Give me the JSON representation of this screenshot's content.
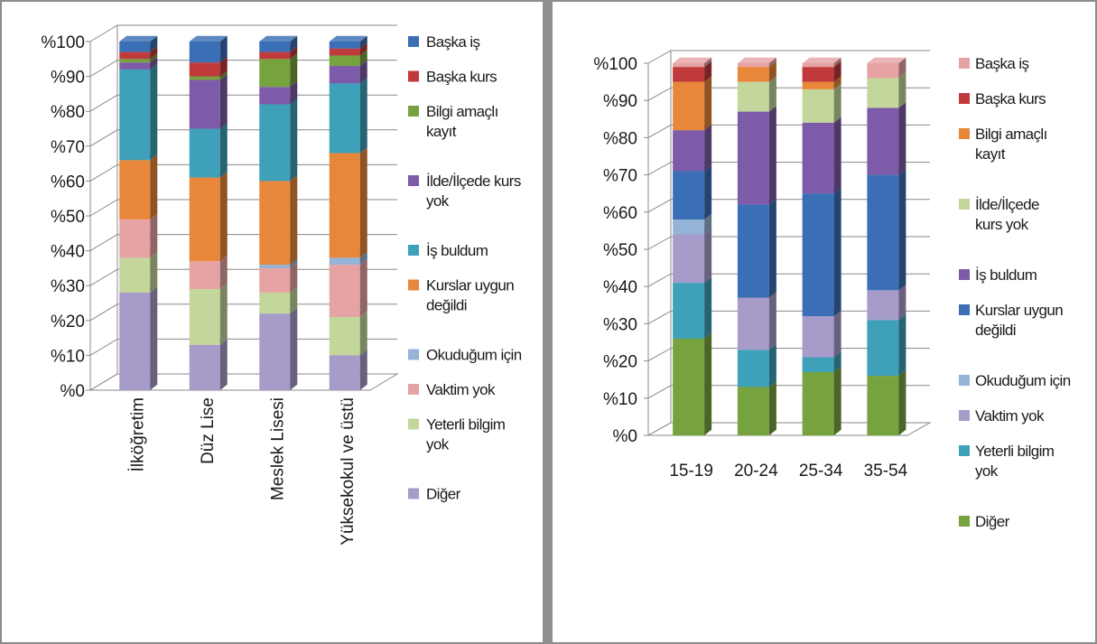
{
  "chart_data": [
    {
      "type": "bar",
      "stacked": "percent",
      "style": "3d-column",
      "categories": [
        "İlköğretim",
        "Düz Lise",
        "Meslek Lisesi",
        "Yüksekokul ve üstü"
      ],
      "yticks": [
        "%0",
        "%10",
        "%20",
        "%30",
        "%40",
        "%50",
        "%60",
        "%70",
        "%80",
        "%90",
        "%100"
      ],
      "ylim": [
        0,
        100
      ],
      "legend_position": "right",
      "series": [
        {
          "name": "Diğer",
          "color": "#a79bc9",
          "values": [
            28,
            13,
            22,
            10
          ]
        },
        {
          "name": "Yeterli bilgim yok",
          "color": "#c3d69b",
          "values": [
            10,
            16,
            6,
            11
          ]
        },
        {
          "name": "Vaktim yok",
          "color": "#e6a3a3",
          "values": [
            11,
            8,
            7,
            15
          ]
        },
        {
          "name": "Okuduğum için",
          "color": "#95b3d7",
          "values": [
            0,
            0,
            1,
            2
          ]
        },
        {
          "name": "Kurslar uygun değildi",
          "color": "#e8873a",
          "values": [
            17,
            24,
            24,
            30
          ]
        },
        {
          "name": "İş buldum",
          "color": "#3ea0b9",
          "values": [
            26,
            14,
            22,
            20
          ]
        },
        {
          "name": "İlde/İlçede kurs yok",
          "color": "#7e5ba8",
          "values": [
            2,
            14,
            5,
            5
          ]
        },
        {
          "name": "Bilgi amaçlı kayıt",
          "color": "#77a33f",
          "values": [
            1,
            1,
            8,
            3
          ]
        },
        {
          "name": "Başka kurs",
          "color": "#c0393b",
          "values": [
            2,
            4,
            2,
            2
          ]
        },
        {
          "name": "Başka iş",
          "color": "#3b6fb5",
          "values": [
            3,
            6,
            3,
            2
          ]
        }
      ],
      "legend": [
        {
          "label": "Başka iş",
          "color": "#3b6fb5"
        },
        {
          "label": "Başka kurs",
          "color": "#c0393b"
        },
        {
          "label": "Bilgi amaçlı kayıt",
          "color": "#77a33f"
        },
        {
          "label": "İlde/İlçede kurs yok",
          "color": "#7e5ba8"
        },
        {
          "label": "İş buldum",
          "color": "#3ea0b9"
        },
        {
          "label": "Kurslar uygun değildi",
          "color": "#e8873a"
        },
        {
          "label": "Okuduğum için",
          "color": "#95b3d7"
        },
        {
          "label": "Vaktim yok",
          "color": "#e6a3a3"
        },
        {
          "label": "Yeterli bilgim yok",
          "color": "#c3d69b"
        },
        {
          "label": "Diğer",
          "color": "#a79bc9"
        }
      ]
    },
    {
      "type": "bar",
      "stacked": "percent",
      "style": "3d-column",
      "categories": [
        "15-19",
        "20-24",
        "25-34",
        "35-54"
      ],
      "yticks": [
        "%0",
        "%10",
        "%20",
        "%30",
        "%40",
        "%50",
        "%60",
        "%70",
        "%80",
        "%90",
        "%100"
      ],
      "ylim": [
        0,
        100
      ],
      "legend_position": "right",
      "series": [
        {
          "name": "Diğer",
          "color": "#77a33f",
          "values": [
            26,
            13,
            17,
            16
          ]
        },
        {
          "name": "Yeterli bilgim yok",
          "color": "#3ea0b9",
          "values": [
            15,
            10,
            4,
            15
          ]
        },
        {
          "name": "Vaktim yok",
          "color": "#a79bc9",
          "values": [
            13,
            14,
            11,
            8
          ]
        },
        {
          "name": "Okuduğum için",
          "color": "#95b3d7",
          "values": [
            4,
            0,
            0,
            0
          ]
        },
        {
          "name": "Kurslar uygun değildi",
          "color": "#3b6fb5",
          "values": [
            13,
            25,
            33,
            31
          ]
        },
        {
          "name": "İş buldum",
          "color": "#7e5ba8",
          "values": [
            11,
            25,
            19,
            18
          ]
        },
        {
          "name": "İlde/İlçede kurs yok",
          "color": "#c3d69b",
          "values": [
            0,
            8,
            9,
            8
          ]
        },
        {
          "name": "Bilgi amaçlı kayıt",
          "color": "#e8873a",
          "values": [
            13,
            4,
            2,
            0
          ]
        },
        {
          "name": "Başka kurs",
          "color": "#c0393b",
          "values": [
            4,
            0,
            4,
            0
          ]
        },
        {
          "name": "Başka iş",
          "color": "#e6a3a3",
          "values": [
            1,
            1,
            1,
            4
          ]
        }
      ],
      "legend": [
        {
          "label": "Başka iş",
          "color": "#e6a3a3"
        },
        {
          "label": "Başka kurs",
          "color": "#c0393b"
        },
        {
          "label": "Bilgi amaçlı kayıt",
          "color": "#e8873a"
        },
        {
          "label": "İlde/İlçede kurs yok",
          "color": "#c3d69b"
        },
        {
          "label": "İş buldum",
          "color": "#7e5ba8"
        },
        {
          "label": "Kurslar uygun değildi",
          "color": "#3b6fb5"
        },
        {
          "label": "Okuduğum için",
          "color": "#95b3d7"
        },
        {
          "label": "Vaktim yok",
          "color": "#a79bc9"
        },
        {
          "label": "Yeterli bilgim yok",
          "color": "#3ea0b9"
        },
        {
          "label": "Diğer",
          "color": "#77a33f"
        }
      ]
    }
  ]
}
